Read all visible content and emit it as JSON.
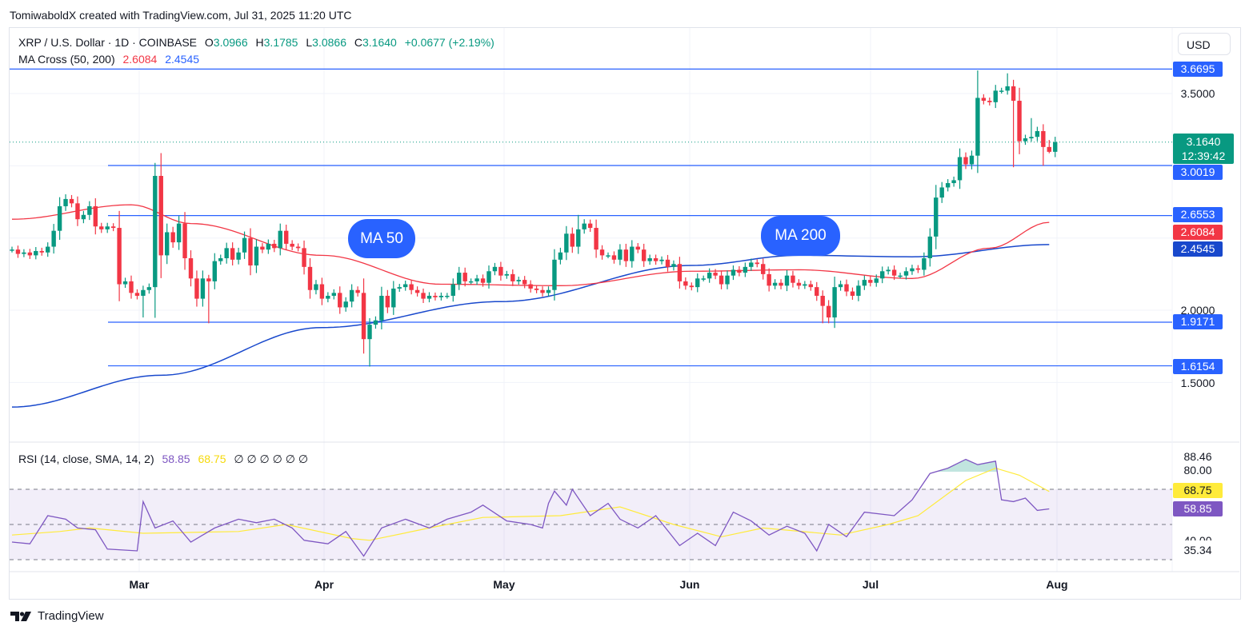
{
  "credit": "TomiwaboldX created with TradingView.com, Jul 31, 2025 11:20 UTC",
  "legend": {
    "symbol": "XRP / U.S. Dollar · 1D · COINBASE",
    "o_label": "O",
    "o": "3.0966",
    "h_label": "H",
    "h": "3.1785",
    "l_label": "L",
    "l": "3.0866",
    "c_label": "C",
    "c": "3.1640",
    "change": "+0.0677 (+2.19%)",
    "ma_title": "MA Cross (50, 200)",
    "ma50": "2.6084",
    "ma200": "2.4545",
    "rsi_title": "RSI (14, close, SMA, 14, 2)",
    "rsi": "58.85",
    "rsi_sma": "68.75",
    "rsi_empty": "∅ ∅ ∅ ∅ ∅ ∅"
  },
  "currency": "USD",
  "price_axis": {
    "ticks": [
      "3.5000",
      "2.0000",
      "1.5000"
    ],
    "current_price": "3.1640",
    "countdown": "12:39:42"
  },
  "levels": [
    {
      "price": 3.6695,
      "label": "3.6695"
    },
    {
      "price": 3.0019,
      "label": "3.0019"
    },
    {
      "price": 2.6553,
      "label": "2.6553"
    },
    {
      "price": 1.9171,
      "label": "1.9171"
    },
    {
      "price": 1.6154,
      "label": "1.6154"
    }
  ],
  "ma_tags": {
    "ma50": "2.6084",
    "ma200": "2.4545"
  },
  "annotations": {
    "ma50": "MA 50",
    "ma200": "MA 200"
  },
  "rsi_axis": {
    "top": "88.46",
    "upper": "80.00",
    "sma": "68.75",
    "rsi": "58.85",
    "lower_partial": "40.00",
    "bottom": "35.34"
  },
  "months": [
    "Mar",
    "Apr",
    "May",
    "Jun",
    "Jul",
    "Aug"
  ],
  "brand": "TradingView",
  "colors": {
    "up": "#089981",
    "down": "#f23645",
    "ma50": "#f23645",
    "ma200": "#1848cc",
    "level": "#2962ff",
    "rsi": "#7e57c2",
    "rsi_sma": "#ffeb3b"
  },
  "chart_data": {
    "type": "candlestick",
    "first_date": "Feb 6, 2025",
    "closes": [
      2.42,
      2.39,
      2.4,
      2.38,
      2.41,
      2.4,
      2.44,
      2.55,
      2.72,
      2.77,
      2.74,
      2.63,
      2.66,
      2.72,
      2.58,
      2.56,
      2.58,
      2.57,
      2.18,
      2.2,
      2.12,
      2.1,
      2.14,
      2.16,
      2.93,
      2.38,
      2.54,
      2.47,
      2.6,
      2.36,
      2.22,
      2.08,
      2.22,
      2.2,
      2.34,
      2.36,
      2.43,
      2.35,
      2.4,
      2.5,
      2.31,
      2.44,
      2.42,
      2.46,
      2.43,
      2.55,
      2.46,
      2.44,
      2.43,
      2.3,
      2.14,
      2.18,
      2.08,
      2.1,
      2.12,
      2.02,
      2.06,
      2.14,
      2.12,
      1.8,
      1.9,
      1.93,
      2.1,
      2.02,
      2.15,
      2.16,
      2.18,
      2.14,
      2.12,
      2.08,
      2.1,
      2.09,
      2.1,
      2.1,
      2.18,
      2.26,
      2.2,
      2.2,
      2.22,
      2.19,
      2.27,
      2.3,
      2.24,
      2.25,
      2.2,
      2.21,
      2.18,
      2.15,
      2.14,
      2.12,
      2.14,
      2.35,
      2.4,
      2.53,
      2.44,
      2.56,
      2.6,
      2.57,
      2.42,
      2.38,
      2.38,
      2.35,
      2.42,
      2.34,
      2.44,
      2.42,
      2.34,
      2.36,
      2.34,
      2.35,
      2.3,
      2.32,
      2.2,
      2.17,
      2.16,
      2.22,
      2.22,
      2.26,
      2.24,
      2.18,
      2.24,
      2.28,
      2.26,
      2.3,
      2.33,
      2.32,
      2.25,
      2.17,
      2.19,
      2.17,
      2.24,
      2.19,
      2.17,
      2.18,
      2.16,
      2.1,
      2.03,
      1.95,
      2.16,
      2.18,
      2.13,
      2.1,
      2.17,
      2.21,
      2.19,
      2.22,
      2.27,
      2.28,
      2.24,
      2.24,
      2.27,
      2.29,
      2.28,
      2.36,
      2.51,
      2.78,
      2.85,
      2.88,
      2.9,
      3.06,
      3.01,
      3.07,
      3.47,
      3.45,
      3.44,
      3.52,
      3.52,
      3.55,
      3.45,
      3.17,
      3.19,
      3.2,
      3.24,
      3.13,
      3.0966,
      3.164
    ],
    "notable_highs": [
      [
        24,
        3.02
      ],
      [
        95,
        2.66
      ],
      [
        162,
        3.66
      ],
      [
        167,
        3.64
      ],
      [
        171,
        3.33
      ],
      [
        174,
        3.1785
      ]
    ],
    "notable_lows": [
      [
        22,
        1.95
      ],
      [
        33,
        1.91
      ],
      [
        60,
        1.61
      ],
      [
        136,
        1.91
      ],
      [
        168,
        2.99
      ],
      [
        173,
        3.0
      ],
      [
        174,
        3.0866
      ]
    ],
    "ma50": [
      [
        0,
        2.63
      ],
      [
        20,
        2.73
      ],
      [
        30,
        2.6
      ],
      [
        52,
        2.38
      ],
      [
        72,
        2.18
      ],
      [
        92,
        2.17
      ],
      [
        114,
        2.27
      ],
      [
        132,
        2.28
      ],
      [
        151,
        2.22
      ],
      [
        164,
        2.43
      ],
      [
        174,
        2.6084
      ]
    ],
    "ma200": [
      [
        0,
        1.33
      ],
      [
        25,
        1.55
      ],
      [
        52,
        1.88
      ],
      [
        82,
        2.06
      ],
      [
        114,
        2.31
      ],
      [
        132,
        2.38
      ],
      [
        151,
        2.37
      ],
      [
        174,
        2.4545
      ]
    ],
    "rsi": [
      [
        0,
        40
      ],
      [
        3,
        39
      ],
      [
        6,
        55
      ],
      [
        9,
        53
      ],
      [
        11,
        48
      ],
      [
        14,
        47
      ],
      [
        16,
        36
      ],
      [
        21,
        35
      ],
      [
        22,
        63
      ],
      [
        24,
        48
      ],
      [
        27,
        52
      ],
      [
        30,
        40
      ],
      [
        34,
        48
      ],
      [
        38,
        53
      ],
      [
        41,
        51
      ],
      [
        44,
        53
      ],
      [
        47,
        48
      ],
      [
        49,
        41
      ],
      [
        53,
        39
      ],
      [
        56,
        46
      ],
      [
        59,
        32
      ],
      [
        62,
        48
      ],
      [
        66,
        53
      ],
      [
        70,
        48
      ],
      [
        73,
        53
      ],
      [
        77,
        57
      ],
      [
        79,
        61
      ],
      [
        83,
        52
      ],
      [
        87,
        50
      ],
      [
        89,
        48
      ],
      [
        90,
        62
      ],
      [
        91,
        69
      ],
      [
        93,
        61
      ],
      [
        94,
        70
      ],
      [
        97,
        55
      ],
      [
        100,
        62
      ],
      [
        102,
        53
      ],
      [
        105,
        48
      ],
      [
        108,
        55
      ],
      [
        112,
        38
      ],
      [
        115,
        45
      ],
      [
        118,
        38
      ],
      [
        121,
        57
      ],
      [
        124,
        52
      ],
      [
        127,
        44
      ],
      [
        130,
        49
      ],
      [
        133,
        45
      ],
      [
        135,
        35
      ],
      [
        137,
        50
      ],
      [
        140,
        43
      ],
      [
        143,
        57
      ],
      [
        148,
        55
      ],
      [
        151,
        64
      ],
      [
        154,
        79
      ],
      [
        157,
        82
      ],
      [
        160,
        87
      ],
      [
        162,
        84
      ],
      [
        165,
        86
      ],
      [
        166,
        64
      ],
      [
        168,
        63
      ],
      [
        170,
        65
      ],
      [
        172,
        58
      ],
      [
        174,
        58.85
      ]
    ],
    "rsi_sma": [
      [
        0,
        44
      ],
      [
        8,
        46
      ],
      [
        13,
        48
      ],
      [
        22,
        45
      ],
      [
        38,
        46
      ],
      [
        46,
        50
      ],
      [
        57,
        42
      ],
      [
        60,
        41
      ],
      [
        70,
        48
      ],
      [
        79,
        54
      ],
      [
        92,
        55
      ],
      [
        102,
        60
      ],
      [
        111,
        50
      ],
      [
        119,
        43
      ],
      [
        126,
        48
      ],
      [
        139,
        44
      ],
      [
        147,
        50
      ],
      [
        152,
        55
      ],
      [
        160,
        75
      ],
      [
        165,
        82
      ],
      [
        169,
        78
      ],
      [
        174,
        68.75
      ]
    ],
    "rsi_bands": [
      70,
      50,
      30
    ],
    "ylim": [
      1.3,
      3.8
    ]
  }
}
